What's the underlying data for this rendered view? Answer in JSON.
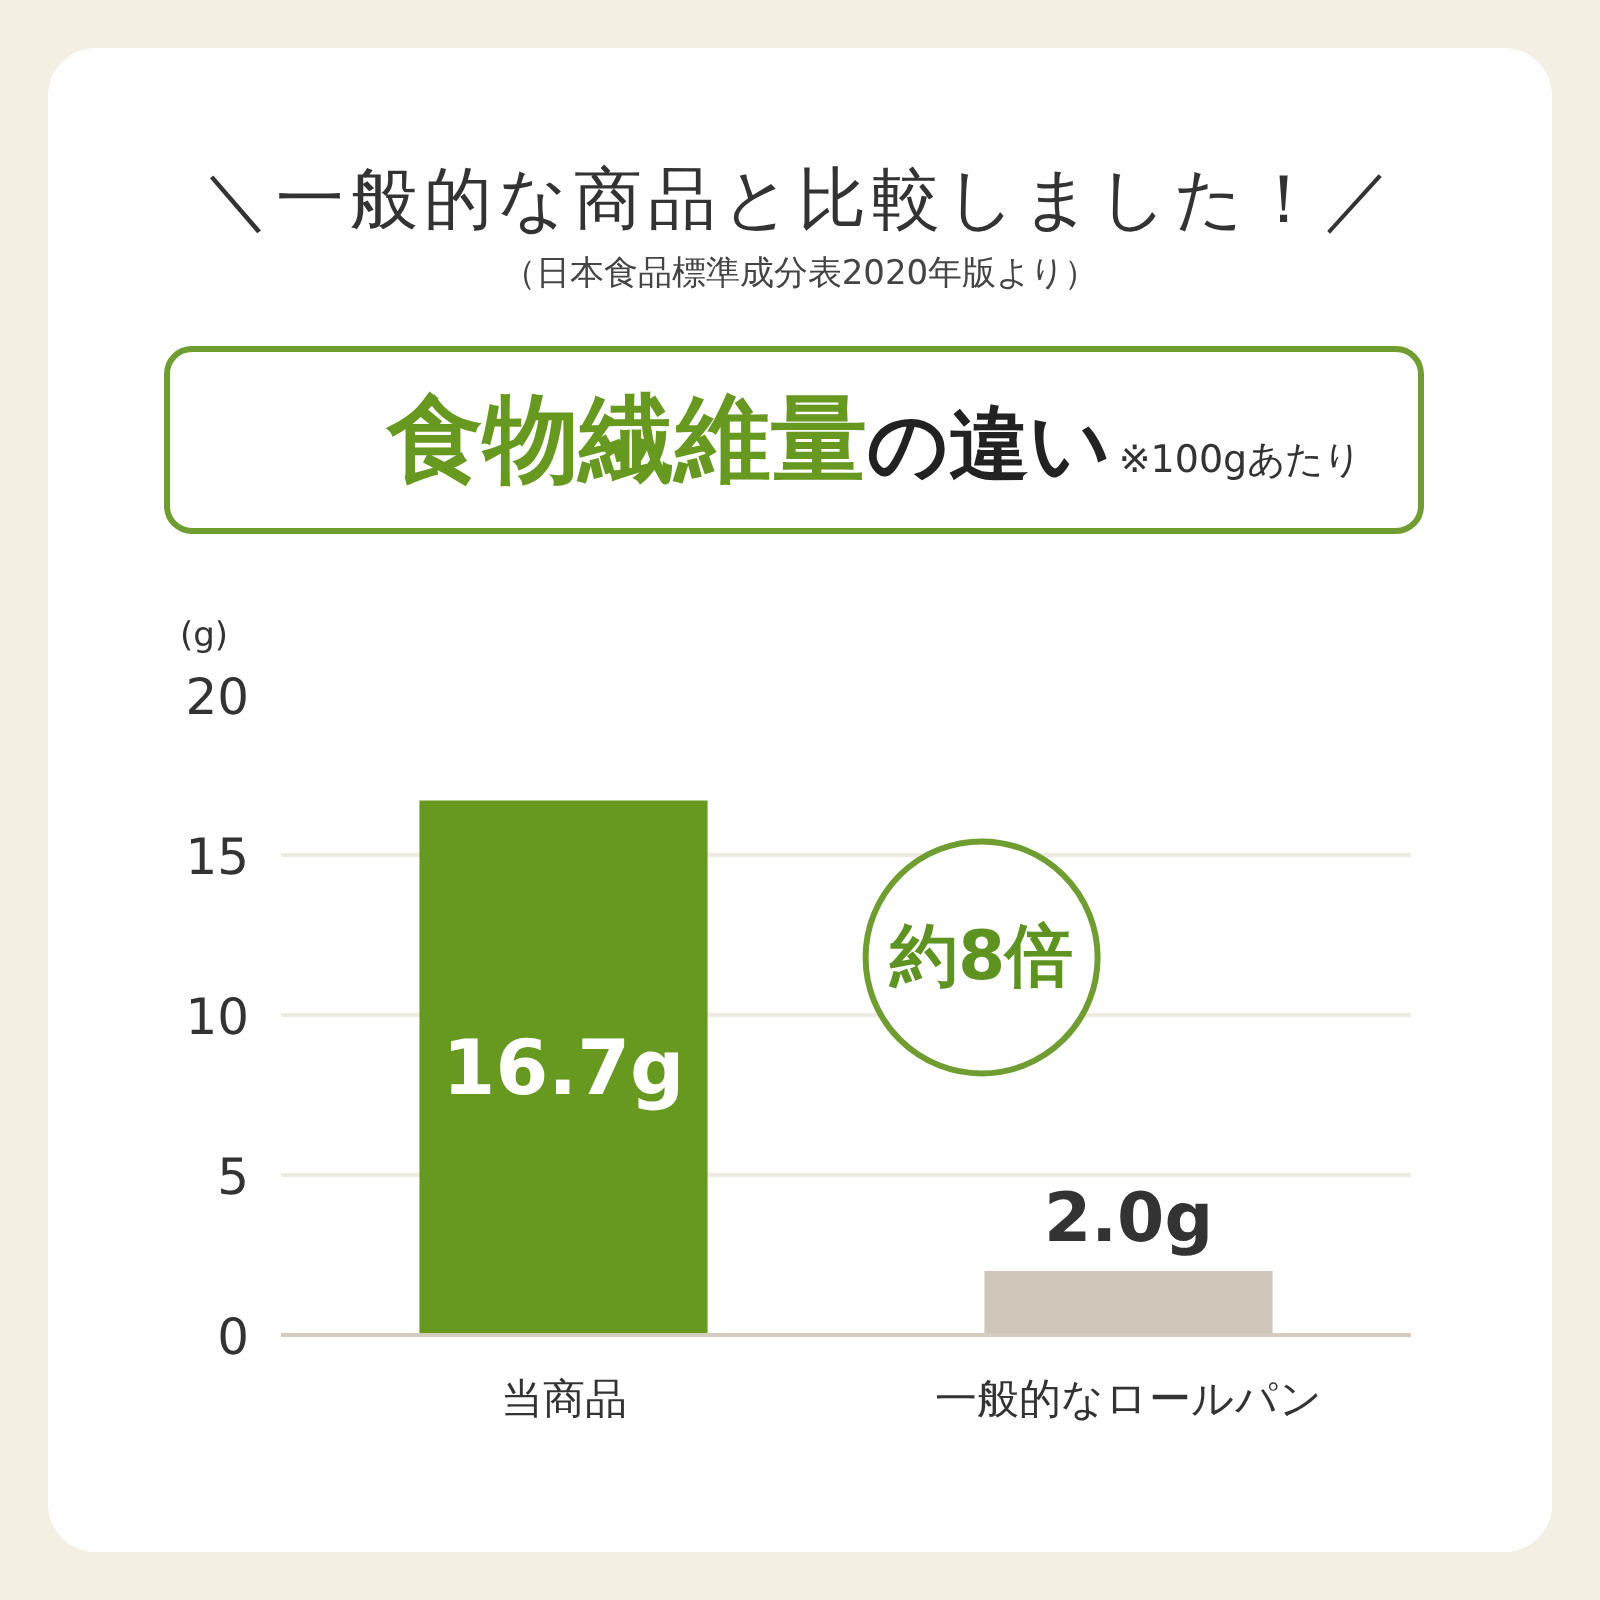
{
  "chart_data": {
    "type": "bar",
    "title": "＼一般的な商品と比較しました！／",
    "subtitle": "（日本食品標準成分表2020年版より）",
    "ylabel": "(g)",
    "annotations": [
      "食物繊維量",
      "の違い",
      "※100gあたり",
      "約8倍"
    ],
    "categories": [
      "当商品",
      "一般的なロールパン"
    ],
    "values": [
      16.7,
      2.0
    ],
    "colors": [
      "#67981f",
      "#cec6b8"
    ],
    "value_labels": [
      "16.7g",
      "2.0g"
    ],
    "ylim": [
      0,
      20
    ],
    "yticks": [
      0,
      5,
      10,
      15,
      20
    ],
    "grid": "y"
  }
}
